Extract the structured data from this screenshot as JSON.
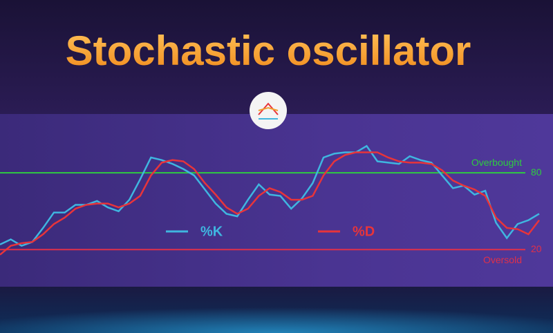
{
  "chart_data": {
    "type": "line",
    "title": "Stochastic oscillator",
    "x": [
      0,
      1,
      2,
      3,
      4,
      5,
      6,
      7,
      8,
      9,
      10,
      11,
      12,
      13,
      14,
      15,
      16,
      17,
      18,
      19,
      20,
      21,
      22,
      23,
      24,
      25,
      26,
      27,
      28,
      29,
      30,
      31,
      32,
      33,
      34,
      35,
      36,
      37,
      38,
      39,
      40,
      41,
      42,
      43,
      44,
      45,
      46,
      47,
      48,
      49,
      50
    ],
    "xlim": [
      0,
      50
    ],
    "ylim": [
      -9,
      126
    ],
    "yticks": [
      20,
      80
    ],
    "tick_colors": [
      "#e0304a",
      "#2ecc40"
    ],
    "annotations": [
      "Oversold",
      "Overbought"
    ],
    "series": [
      {
        "name": "%K",
        "color": "#3fb6e0",
        "values": [
          24,
          28,
          23,
          26,
          37,
          49,
          49,
          55,
          55,
          58,
          53,
          50,
          59,
          75,
          92,
          90,
          87,
          83,
          78,
          67,
          56,
          48,
          46,
          59,
          71,
          63,
          62,
          52,
          60,
          72,
          92,
          95,
          96,
          96,
          101,
          89,
          88,
          87,
          93,
          90,
          88,
          78,
          68,
          70,
          63,
          66,
          41,
          29,
          40,
          43,
          48
        ]
      },
      {
        "name": "%D",
        "color": "#e8343a",
        "values": [
          16,
          23,
          25,
          26,
          32,
          40,
          45,
          52,
          55,
          56,
          56,
          53,
          56,
          62,
          78,
          88,
          90,
          89,
          83,
          72,
          63,
          53,
          48,
          52,
          62,
          68,
          65,
          59,
          59,
          62,
          78,
          89,
          94,
          96,
          96,
          96,
          92,
          89,
          88,
          88,
          87,
          82,
          74,
          70,
          67,
          62,
          45,
          37,
          36,
          32,
          43
        ]
      }
    ]
  }
}
